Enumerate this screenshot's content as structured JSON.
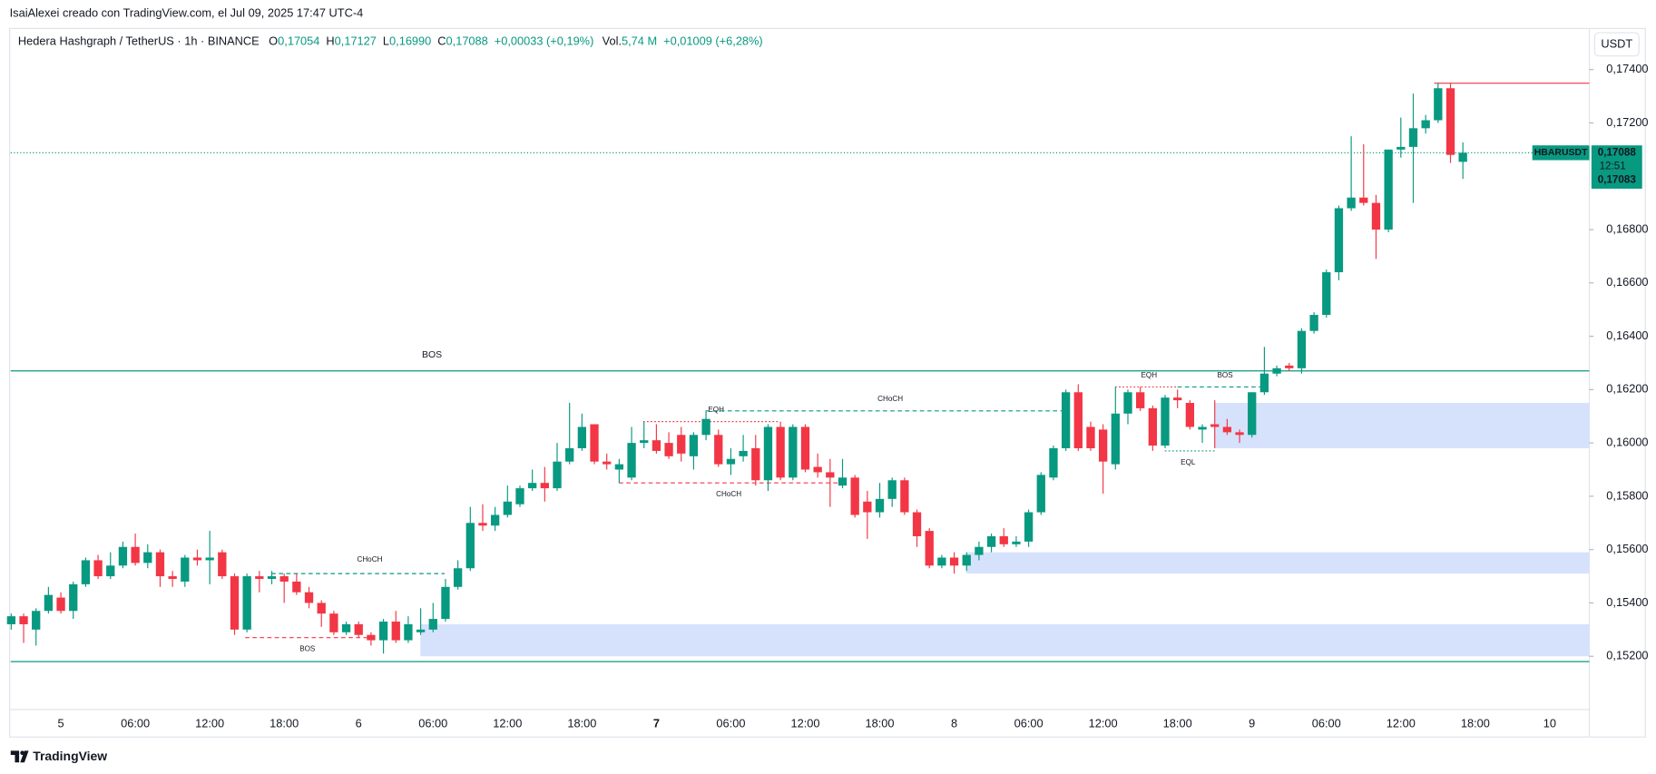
{
  "credit": "IsaiAlexei creado con TradingView.com, el Jul 09, 2025 17:47 UTC-4",
  "currency_button": "USDT",
  "logo": "TradingView",
  "legend": {
    "symbol": "Hedera Hashgraph / TetherUS · 1h · BINANCE",
    "items": [
      {
        "key": "O",
        "value": "0,17054"
      },
      {
        "key": "H",
        "value": "0,17127"
      },
      {
        "key": "L",
        "value": "0,16990"
      },
      {
        "key": "C",
        "value": "0,17088"
      }
    ],
    "change": "+0,00033 (+0,19%)",
    "volume_key": "Vol.",
    "volume_value": "5,74 M",
    "volume_change": "+0,01009 (+6,28%)"
  },
  "price_tag": {
    "symbol": "HBARUSDT",
    "price": "0,17088",
    "countdown": "12:51",
    "price2": "0,17083"
  },
  "chart_data": {
    "type": "candlestick",
    "up_color": "#089981",
    "down_color": "#f23645",
    "ylim": [
      0.15,
      0.1755
    ],
    "yticks": [
      {
        "value": 0.152,
        "label": "0,15200"
      },
      {
        "value": 0.154,
        "label": "0,15400"
      },
      {
        "value": 0.156,
        "label": "0,15600"
      },
      {
        "value": 0.158,
        "label": "0,15800"
      },
      {
        "value": 0.16,
        "label": "0,16000"
      },
      {
        "value": 0.162,
        "label": "0,16200"
      },
      {
        "value": 0.164,
        "label": "0,16400"
      },
      {
        "value": 0.166,
        "label": "0,16600"
      },
      {
        "value": 0.168,
        "label": "0,16800"
      },
      {
        "value": 0.172,
        "label": "0,17200"
      },
      {
        "value": 0.174,
        "label": "0,17400"
      }
    ],
    "xticks": [
      "5",
      "06:00",
      "12:00",
      "18:00",
      "6",
      "06:00",
      "12:00",
      "18:00",
      "7",
      "06:00",
      "12:00",
      "18:00",
      "8",
      "06:00",
      "12:00",
      "18:00",
      "9",
      "06:00",
      "12:00",
      "18:00",
      "10"
    ],
    "open": [
      0.1532,
      0.1535,
      0.153,
      0.1537,
      0.1542,
      0.1537,
      0.1547,
      0.1556,
      0.155,
      0.1554,
      0.1561,
      0.1555,
      0.1559,
      0.155,
      0.1548,
      0.1557,
      0.1556,
      0.1559,
      0.155,
      0.153,
      0.155,
      0.1549,
      0.155,
      0.1548,
      0.1544,
      0.154,
      0.1536,
      0.1529,
      0.1532,
      0.1528,
      0.1526,
      0.1533,
      0.1526,
      0.1529,
      0.153,
      0.1534,
      0.1546,
      0.1553,
      0.157,
      0.1569,
      0.1573,
      0.1577,
      0.1583,
      0.1585,
      0.1583,
      0.1593,
      0.1598,
      0.1607,
      0.1593,
      0.159,
      0.1587,
      0.16,
      0.1601,
      0.16,
      0.1603,
      0.1595,
      0.1603,
      0.1603,
      0.1592,
      0.1595,
      0.1598,
      0.1586,
      0.1606,
      0.1587,
      0.1606,
      0.1591,
      0.1589,
      0.1584,
      0.1587,
      0.1578,
      0.1574,
      0.1579,
      0.1586,
      0.1574,
      0.1567,
      0.1554,
      0.1557,
      0.1554,
      0.1558,
      0.1561,
      0.1565,
      0.1562,
      0.1563,
      0.1574,
      0.1587,
      0.1598,
      0.1619,
      0.1606,
      0.1605,
      0.1592,
      0.1611,
      0.1619,
      0.1613,
      0.1599,
      0.1617,
      0.1615,
      0.1605,
      0.1607,
      0.1606,
      0.1604,
      0.1603,
      0.1619,
      0.1626,
      0.1629,
      0.1628,
      0.1642,
      0.1648,
      0.1664,
      0.1688,
      0.1692,
      0.169,
      0.168,
      0.171,
      0.1711,
      0.1718,
      0.1721,
      0.1733,
      0.17054
    ],
    "high": [
      0.1536,
      0.1536,
      0.1538,
      0.1546,
      0.1544,
      0.1548,
      0.1557,
      0.1558,
      0.1559,
      0.1563,
      0.1566,
      0.1562,
      0.156,
      0.1552,
      0.1558,
      0.156,
      0.1567,
      0.156,
      0.1551,
      0.1551,
      0.1552,
      0.1552,
      0.1551,
      0.1551,
      0.1546,
      0.1541,
      0.1537,
      0.1533,
      0.1533,
      0.1529,
      0.1534,
      0.1537,
      0.1535,
      0.1538,
      0.154,
      0.1549,
      0.1556,
      0.1576,
      0.1577,
      0.1576,
      0.1584,
      0.1584,
      0.159,
      0.1591,
      0.16,
      0.1615,
      0.1611,
      0.1607,
      0.1596,
      0.1594,
      0.1606,
      0.1608,
      0.1607,
      0.1604,
      0.1606,
      0.1604,
      0.1612,
      0.1605,
      0.1598,
      0.1603,
      0.1603,
      0.1607,
      0.1608,
      0.1607,
      0.1607,
      0.1596,
      0.1594,
      0.1594,
      0.1588,
      0.1582,
      0.1585,
      0.1587,
      0.1587,
      0.1575,
      0.1568,
      0.1558,
      0.1559,
      0.1559,
      0.1563,
      0.1566,
      0.1568,
      0.1565,
      0.1575,
      0.1589,
      0.1599,
      0.162,
      0.1622,
      0.1608,
      0.1607,
      0.1621,
      0.162,
      0.1621,
      0.1614,
      0.1618,
      0.162,
      0.1616,
      0.1607,
      0.1616,
      0.1609,
      0.1605,
      0.1619,
      0.1636,
      0.1629,
      0.163,
      0.1643,
      0.1649,
      0.1665,
      0.1689,
      0.1715,
      0.1712,
      0.1693,
      0.171,
      0.1722,
      0.1731,
      0.1723,
      0.1735,
      0.1735,
      0.17127
    ],
    "low": [
      0.153,
      0.1525,
      0.1524,
      0.1536,
      0.1536,
      0.1534,
      0.1546,
      0.1549,
      0.1549,
      0.1553,
      0.1554,
      0.1553,
      0.1546,
      0.1546,
      0.1546,
      0.1554,
      0.1547,
      0.1549,
      0.1528,
      0.1529,
      0.1544,
      0.1547,
      0.154,
      0.1543,
      0.1538,
      0.1531,
      0.1528,
      0.1528,
      0.1527,
      0.1524,
      0.1521,
      0.1525,
      0.1525,
      0.1528,
      0.1529,
      0.1533,
      0.1545,
      0.1552,
      0.1567,
      0.1567,
      0.1572,
      0.1576,
      0.1582,
      0.1578,
      0.1582,
      0.1592,
      0.1597,
      0.1592,
      0.159,
      0.1585,
      0.1586,
      0.1598,
      0.1596,
      0.1594,
      0.1593,
      0.159,
      0.1601,
      0.1591,
      0.1588,
      0.1593,
      0.1584,
      0.1582,
      0.1586,
      0.1586,
      0.1589,
      0.1587,
      0.1576,
      0.1583,
      0.1572,
      0.1564,
      0.1572,
      0.1576,
      0.1573,
      0.1561,
      0.1553,
      0.1553,
      0.1551,
      0.1552,
      0.1556,
      0.1559,
      0.1561,
      0.1561,
      0.1561,
      0.1573,
      0.1586,
      0.1597,
      0.1597,
      0.1597,
      0.1581,
      0.159,
      0.1607,
      0.1612,
      0.1597,
      0.1598,
      0.1613,
      0.1605,
      0.16,
      0.1598,
      0.1603,
      0.16,
      0.1602,
      0.1618,
      0.1625,
      0.1627,
      0.1626,
      0.1641,
      0.1647,
      0.1661,
      0.1687,
      0.1689,
      0.1669,
      0.1679,
      0.1707,
      0.169,
      0.1716,
      0.172,
      0.1705,
      0.1699
    ],
    "close": [
      0.1535,
      0.1532,
      0.1537,
      0.1543,
      0.1537,
      0.1547,
      0.1556,
      0.155,
      0.1554,
      0.1561,
      0.1555,
      0.1559,
      0.155,
      0.1549,
      0.1557,
      0.1556,
      0.1557,
      0.155,
      0.153,
      0.155,
      0.1549,
      0.155,
      0.1548,
      0.1544,
      0.154,
      0.1536,
      0.1529,
      0.1532,
      0.1528,
      0.1526,
      0.1533,
      0.1526,
      0.1532,
      0.153,
      0.1534,
      0.1546,
      0.1553,
      0.157,
      0.1569,
      0.1573,
      0.1578,
      0.1583,
      0.1585,
      0.1583,
      0.1593,
      0.1598,
      0.1606,
      0.1593,
      0.1592,
      0.1592,
      0.16,
      0.1601,
      0.1597,
      0.1595,
      0.1596,
      0.1603,
      0.1609,
      0.1592,
      0.1594,
      0.1597,
      0.1586,
      0.1606,
      0.1587,
      0.1606,
      0.159,
      0.1589,
      0.1587,
      0.1587,
      0.1573,
      0.1574,
      0.1579,
      0.1586,
      0.1574,
      0.1565,
      0.1554,
      0.1557,
      0.1554,
      0.1558,
      0.1561,
      0.1565,
      0.1562,
      0.1563,
      0.1574,
      0.1588,
      0.1598,
      0.1619,
      0.1598,
      0.1598,
      0.1593,
      0.1611,
      0.1619,
      0.1613,
      0.1599,
      0.1617,
      0.1616,
      0.1606,
      0.1606,
      0.1606,
      0.1604,
      0.1603,
      0.1619,
      0.1626,
      0.1628,
      0.1628,
      0.1642,
      0.1648,
      0.1664,
      0.1688,
      0.1692,
      0.169,
      0.168,
      0.171,
      0.1711,
      0.1718,
      0.1721,
      0.1733,
      0.1708,
      0.17088
    ],
    "last_price": 0.17088,
    "zones": [
      {
        "top": 0.1615,
        "bottom": 0.1598
      },
      {
        "top": 0.1559,
        "bottom": 0.1551
      },
      {
        "top": 0.1532,
        "bottom": 0.152
      }
    ],
    "zone_color": "#d6e2fc",
    "levels": [
      {
        "label": "BOS",
        "value": 0.1627,
        "color": "#089981",
        "style": "solid"
      },
      {
        "label": "CHoCH",
        "value": 0.1551,
        "color": "#089981",
        "style": "dashed"
      },
      {
        "label": "BOS",
        "value": 0.1527,
        "color": "#f23645",
        "style": "dashed"
      },
      {
        "label": "EQH",
        "value": 0.1608,
        "color": "#f23645",
        "style": "dotted"
      },
      {
        "label": "CHoCH",
        "value": 0.1585,
        "color": "#f23645",
        "style": "dashed"
      },
      {
        "label": "CHoCH",
        "value": 0.1612,
        "color": "#089981",
        "style": "dashed"
      },
      {
        "label": "EQH",
        "value": 0.1621,
        "color": "#f23645",
        "style": "dotted"
      },
      {
        "label": "BOS",
        "value": 0.1621,
        "color": "#089981",
        "style": "dashed"
      },
      {
        "label": "EQL",
        "value": 0.1597,
        "color": "#089981",
        "style": "dotted"
      },
      {
        "value": 0.1518,
        "color": "#089981",
        "style": "solid"
      },
      {
        "value": 0.17349,
        "color": "#f23645",
        "style": "solid"
      }
    ]
  }
}
